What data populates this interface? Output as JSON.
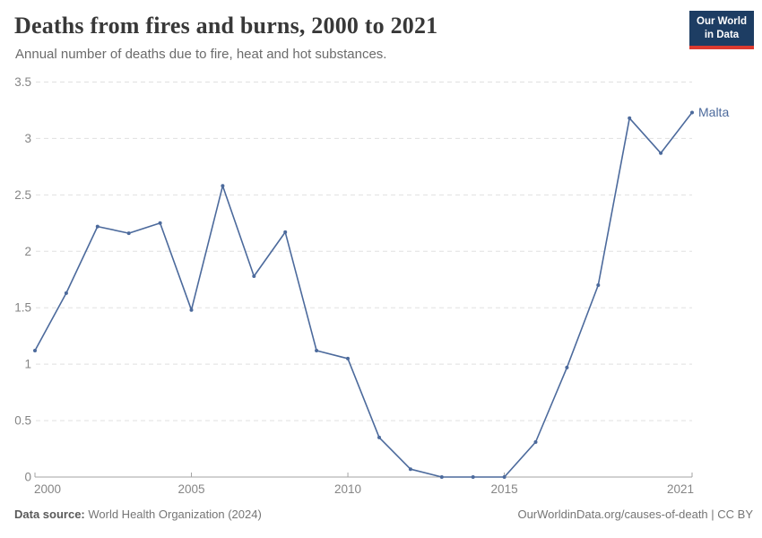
{
  "header": {
    "title": "Deaths from fires and burns, 2000 to 2021",
    "subtitle": "Annual number of deaths due to fire, heat and hot substances.",
    "logo_line1": "Our World",
    "logo_line2": "in Data"
  },
  "chart_data": {
    "type": "line",
    "title": "Deaths from fires and burns, 2000 to 2021",
    "x": [
      2000,
      2001,
      2002,
      2003,
      2004,
      2005,
      2006,
      2007,
      2008,
      2009,
      2010,
      2011,
      2012,
      2013,
      2014,
      2015,
      2016,
      2017,
      2018,
      2019,
      2020,
      2021
    ],
    "series": [
      {
        "name": "Malta",
        "color": "#4C6A9C",
        "values": [
          1.12,
          1.63,
          2.22,
          2.16,
          2.25,
          1.48,
          2.58,
          1.78,
          2.17,
          1.12,
          1.05,
          0.35,
          0.07,
          0,
          0,
          0,
          0.31,
          0.97,
          1.7,
          3.18,
          2.87,
          3.23
        ]
      }
    ],
    "x_ticks": [
      2000,
      2005,
      2010,
      2015,
      2021
    ],
    "y_ticks": [
      0,
      0.5,
      1,
      1.5,
      2,
      2.5,
      3,
      3.5
    ],
    "xlim": [
      2000,
      2021
    ],
    "ylim": [
      0,
      3.5
    ],
    "grid": "horizontal-dashed",
    "legend_position": "end-of-line",
    "xlabel": "",
    "ylabel": ""
  },
  "colors": {
    "line": "#4C6A9C",
    "grid": "#e0e0e0",
    "axis": "#a3a3a3",
    "axis_text": "#858585",
    "series_label": "#4C6A9C"
  },
  "footer": {
    "source_label": "Data source:",
    "source_value": " World Health Organization (2024)",
    "rights": "OurWorldinData.org/causes-of-death | CC BY"
  }
}
